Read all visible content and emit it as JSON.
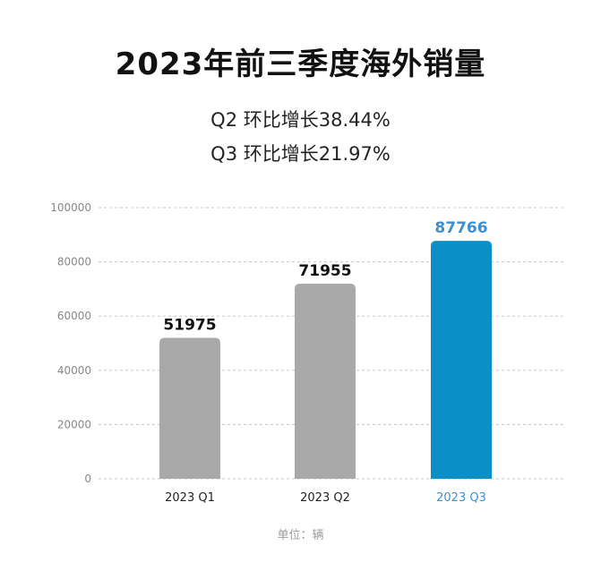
{
  "chart_data": {
    "type": "bar",
    "title": "2023年前三季度海外销量",
    "subtitle_lines": [
      "Q2 环比增长38.44%",
      "Q3 环比增长21.97%"
    ],
    "categories": [
      "2023 Q1",
      "2023 Q2",
      "2023 Q3"
    ],
    "values": [
      51975,
      71955,
      87766
    ],
    "value_labels": [
      "51975",
      "71955",
      "87766"
    ],
    "yticks": [
      "0",
      "20000",
      "40000",
      "60000",
      "80000",
      "100000"
    ],
    "ylim": [
      0,
      100000
    ],
    "grid": true,
    "unit_note": "单位：辆",
    "colors": {
      "default_bar": "#a9a9a9",
      "highlight_bar": "#0a8fc6",
      "highlight_label": "#3c8fd1",
      "grid": "#c8c8c8"
    },
    "highlight_index": 2
  }
}
